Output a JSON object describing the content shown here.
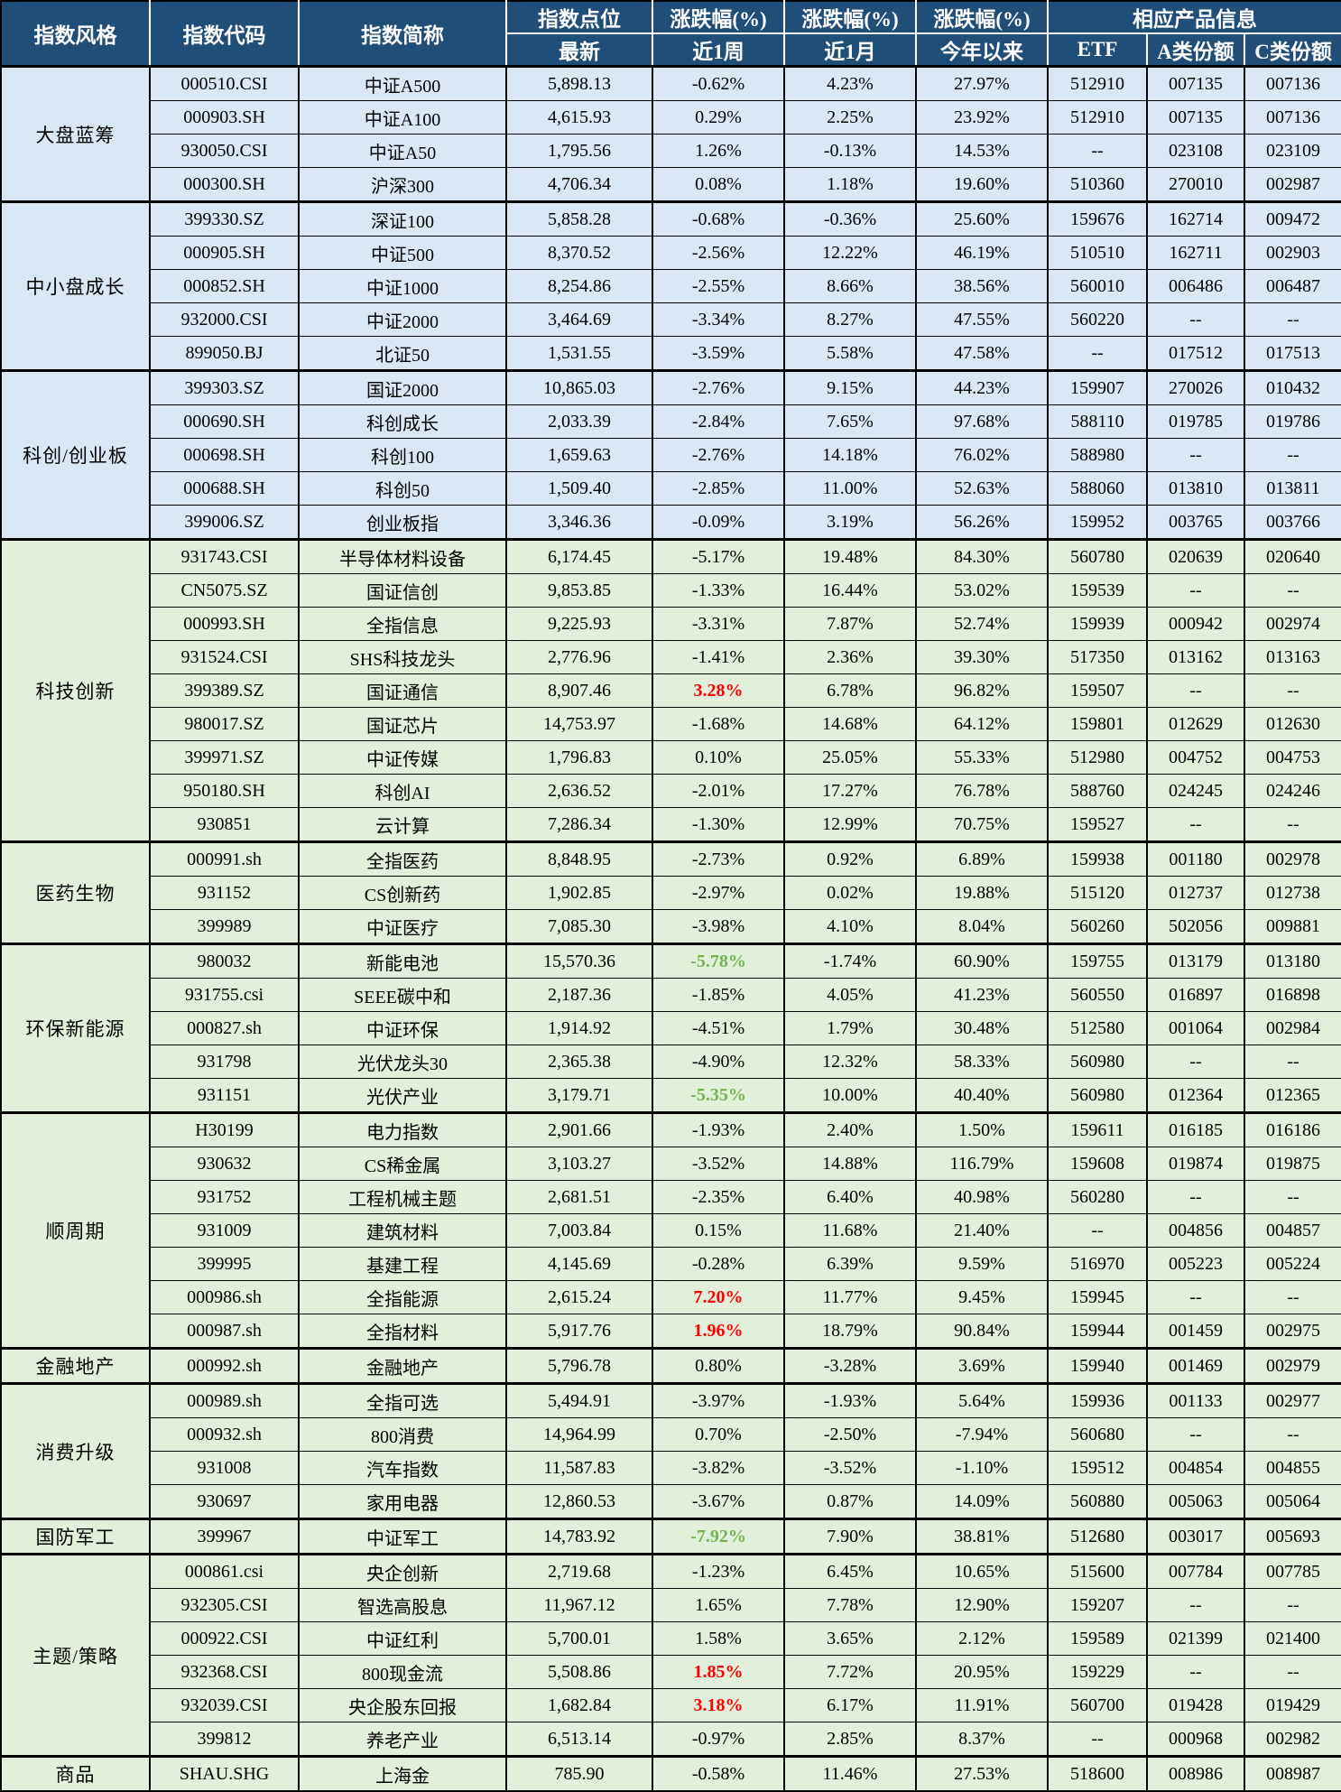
{
  "header": {
    "style": "指数风格",
    "code": "指数代码",
    "name": "指数简称",
    "points": "指数点位",
    "points_sub": "最新",
    "chg": "涨跌幅(%)",
    "chg_sub_week": "近1周",
    "chg_sub_month": "近1月",
    "chg_sub_ytd": "今年以来",
    "products": "相应产品信息",
    "etf": "ETF",
    "share_a": "A类份额",
    "share_c": "C类份额"
  },
  "colors": {
    "header_bg": "#1F4E79",
    "blue_row": "#DAE8F5",
    "green_row": "#E2EFDA",
    "up_red": "#FF0000",
    "down_green": "#76B452"
  },
  "groups": [
    {
      "style": "大盘蓝筹",
      "theme": "blue",
      "rows": [
        {
          "code": "000510.CSI",
          "name": "中证A500",
          "latest": "5,898.13",
          "week": "-0.62%",
          "month": "4.23%",
          "ytd": "27.97%",
          "etf": "512910",
          "a": "007135",
          "c": "007136"
        },
        {
          "code": "000903.SH",
          "name": "中证A100",
          "latest": "4,615.93",
          "week": "0.29%",
          "month": "2.25%",
          "ytd": "23.92%",
          "etf": "512910",
          "a": "007135",
          "c": "007136"
        },
        {
          "code": "930050.CSI",
          "name": "中证A50",
          "latest": "1,795.56",
          "week": "1.26%",
          "month": "-0.13%",
          "ytd": "14.53%",
          "etf": "--",
          "a": "023108",
          "c": "023109"
        },
        {
          "code": "000300.SH",
          "name": "沪深300",
          "latest": "4,706.34",
          "week": "0.08%",
          "month": "1.18%",
          "ytd": "19.60%",
          "etf": "510360",
          "a": "270010",
          "c": "002987"
        }
      ]
    },
    {
      "style": "中小盘成长",
      "theme": "blue",
      "rows": [
        {
          "code": "399330.SZ",
          "name": "深证100",
          "latest": "5,858.28",
          "week": "-0.68%",
          "month": "-0.36%",
          "ytd": "25.60%",
          "etf": "159676",
          "a": "162714",
          "c": "009472"
        },
        {
          "code": "000905.SH",
          "name": "中证500",
          "latest": "8,370.52",
          "week": "-2.56%",
          "month": "12.22%",
          "ytd": "46.19%",
          "etf": "510510",
          "a": "162711",
          "c": "002903"
        },
        {
          "code": "000852.SH",
          "name": "中证1000",
          "latest": "8,254.86",
          "week": "-2.55%",
          "month": "8.66%",
          "ytd": "38.56%",
          "etf": "560010",
          "a": "006486",
          "c": "006487"
        },
        {
          "code": "932000.CSI",
          "name": "中证2000",
          "latest": "3,464.69",
          "week": "-3.34%",
          "month": "8.27%",
          "ytd": "47.55%",
          "etf": "560220",
          "a": "--",
          "c": "--"
        },
        {
          "code": "899050.BJ",
          "name": "北证50",
          "latest": "1,531.55",
          "week": "-3.59%",
          "month": "5.58%",
          "ytd": "47.58%",
          "etf": "--",
          "a": "017512",
          "c": "017513"
        }
      ]
    },
    {
      "style": "科创/创业板",
      "theme": "blue",
      "rows": [
        {
          "code": "399303.SZ",
          "name": "国证2000",
          "latest": "10,865.03",
          "week": "-2.76%",
          "month": "9.15%",
          "ytd": "44.23%",
          "etf": "159907",
          "a": "270026",
          "c": "010432"
        },
        {
          "code": "000690.SH",
          "name": "科创成长",
          "latest": "2,033.39",
          "week": "-2.84%",
          "month": "7.65%",
          "ytd": "97.68%",
          "etf": "588110",
          "a": "019785",
          "c": "019786"
        },
        {
          "code": "000698.SH",
          "name": "科创100",
          "latest": "1,659.63",
          "week": "-2.76%",
          "month": "14.18%",
          "ytd": "76.02%",
          "etf": "588980",
          "a": "--",
          "c": "--"
        },
        {
          "code": "000688.SH",
          "name": "科创50",
          "latest": "1,509.40",
          "week": "-2.85%",
          "month": "11.00%",
          "ytd": "52.63%",
          "etf": "588060",
          "a": "013810",
          "c": "013811"
        },
        {
          "code": "399006.SZ",
          "name": "创业板指",
          "latest": "3,346.36",
          "week": "-0.09%",
          "month": "3.19%",
          "ytd": "56.26%",
          "etf": "159952",
          "a": "003765",
          "c": "003766"
        }
      ]
    },
    {
      "style": "科技创新",
      "theme": "green",
      "rows": [
        {
          "code": "931743.CSI",
          "name": "半导体材料设备",
          "latest": "6,174.45",
          "week": "-5.17%",
          "month": "19.48%",
          "ytd": "84.30%",
          "etf": "560780",
          "a": "020639",
          "c": "020640"
        },
        {
          "code": "CN5075.SZ",
          "name": "国证信创",
          "latest": "9,853.85",
          "week": "-1.33%",
          "month": "16.44%",
          "ytd": "53.02%",
          "etf": "159539",
          "a": "--",
          "c": "--"
        },
        {
          "code": "000993.SH",
          "name": "全指信息",
          "latest": "9,225.93",
          "week": "-3.31%",
          "month": "7.87%",
          "ytd": "52.74%",
          "etf": "159939",
          "a": "000942",
          "c": "002974"
        },
        {
          "code": "931524.CSI",
          "name": "SHS科技龙头",
          "latest": "2,776.96",
          "week": "-1.41%",
          "month": "2.36%",
          "ytd": "39.30%",
          "etf": "517350",
          "a": "013162",
          "c": "013163"
        },
        {
          "code": "399389.SZ",
          "name": "国证通信",
          "latest": "8,907.46",
          "week": "3.28%",
          "week_color": "red",
          "month": "6.78%",
          "ytd": "96.82%",
          "etf": "159507",
          "a": "--",
          "c": "--"
        },
        {
          "code": "980017.SZ",
          "name": "国证芯片",
          "latest": "14,753.97",
          "week": "-1.68%",
          "month": "14.68%",
          "ytd": "64.12%",
          "etf": "159801",
          "a": "012629",
          "c": "012630"
        },
        {
          "code": "399971.SZ",
          "name": "中证传媒",
          "latest": "1,796.83",
          "week": "0.10%",
          "month": "25.05%",
          "ytd": "55.33%",
          "etf": "512980",
          "a": "004752",
          "c": "004753"
        },
        {
          "code": "950180.SH",
          "name": "科创AI",
          "latest": "2,636.52",
          "week": "-2.01%",
          "month": "17.27%",
          "ytd": "76.78%",
          "etf": "588760",
          "a": "024245",
          "c": "024246"
        },
        {
          "code": "930851",
          "name": "云计算",
          "latest": "7,286.34",
          "week": "-1.30%",
          "month": "12.99%",
          "ytd": "70.75%",
          "etf": "159527",
          "a": "--",
          "c": "--"
        }
      ]
    },
    {
      "style": "医药生物",
      "theme": "green",
      "rows": [
        {
          "code": "000991.sh",
          "name": "全指医药",
          "latest": "8,848.95",
          "week": "-2.73%",
          "month": "0.92%",
          "ytd": "6.89%",
          "etf": "159938",
          "a": "001180",
          "c": "002978"
        },
        {
          "code": "931152",
          "name": "CS创新药",
          "latest": "1,902.85",
          "week": "-2.97%",
          "month": "0.02%",
          "ytd": "19.88%",
          "etf": "515120",
          "a": "012737",
          "c": "012738"
        },
        {
          "code": "399989",
          "name": "中证医疗",
          "latest": "7,085.30",
          "week": "-3.98%",
          "month": "4.10%",
          "ytd": "8.04%",
          "etf": "560260",
          "a": "502056",
          "c": "009881"
        }
      ]
    },
    {
      "style": "环保新能源",
      "theme": "green",
      "rows": [
        {
          "code": "980032",
          "name": "新能电池",
          "latest": "15,570.36",
          "week": "-5.78%",
          "week_color": "green",
          "month": "-1.74%",
          "ytd": "60.90%",
          "etf": "159755",
          "a": "013179",
          "c": "013180"
        },
        {
          "code": "931755.csi",
          "name": "SEEE碳中和",
          "latest": "2,187.36",
          "week": "-1.85%",
          "month": "4.05%",
          "ytd": "41.23%",
          "etf": "560550",
          "a": "016897",
          "c": "016898"
        },
        {
          "code": "000827.sh",
          "name": "中证环保",
          "latest": "1,914.92",
          "week": "-4.51%",
          "month": "1.79%",
          "ytd": "30.48%",
          "etf": "512580",
          "a": "001064",
          "c": "002984"
        },
        {
          "code": "931798",
          "name": "光伏龙头30",
          "latest": "2,365.38",
          "week": "-4.90%",
          "month": "12.32%",
          "ytd": "58.33%",
          "etf": "560980",
          "a": "--",
          "c": "--"
        },
        {
          "code": "931151",
          "name": "光伏产业",
          "latest": "3,179.71",
          "week": "-5.35%",
          "week_color": "green",
          "month": "10.00%",
          "ytd": "40.40%",
          "etf": "560980",
          "a": "012364",
          "c": "012365"
        }
      ]
    },
    {
      "style": "顺周期",
      "theme": "green",
      "rows": [
        {
          "code": "H30199",
          "name": "电力指数",
          "latest": "2,901.66",
          "week": "-1.93%",
          "month": "2.40%",
          "ytd": "1.50%",
          "etf": "159611",
          "a": "016185",
          "c": "016186"
        },
        {
          "code": "930632",
          "name": "CS稀金属",
          "latest": "3,103.27",
          "week": "-3.52%",
          "month": "14.88%",
          "ytd": "116.79%",
          "etf": "159608",
          "a": "019874",
          "c": "019875"
        },
        {
          "code": "931752",
          "name": "工程机械主题",
          "latest": "2,681.51",
          "week": "-2.35%",
          "month": "6.40%",
          "ytd": "40.98%",
          "etf": "560280",
          "a": "--",
          "c": "--"
        },
        {
          "code": "931009",
          "name": "建筑材料",
          "latest": "7,003.84",
          "week": "0.15%",
          "month": "11.68%",
          "ytd": "21.40%",
          "etf": "--",
          "a": "004856",
          "c": "004857"
        },
        {
          "code": "399995",
          "name": "基建工程",
          "latest": "4,145.69",
          "week": "-0.28%",
          "month": "6.39%",
          "ytd": "9.59%",
          "etf": "516970",
          "a": "005223",
          "c": "005224"
        },
        {
          "code": "000986.sh",
          "name": "全指能源",
          "latest": "2,615.24",
          "week": "7.20%",
          "week_color": "red",
          "month": "11.77%",
          "ytd": "9.45%",
          "etf": "159945",
          "a": "--",
          "c": "--"
        },
        {
          "code": "000987.sh",
          "name": "全指材料",
          "latest": "5,917.76",
          "week": "1.96%",
          "week_color": "red",
          "month": "18.79%",
          "ytd": "90.84%",
          "etf": "159944",
          "a": "001459",
          "c": "002975"
        }
      ]
    },
    {
      "style": "金融地产",
      "theme": "green",
      "rows": [
        {
          "code": "000992.sh",
          "name": "金融地产",
          "latest": "5,796.78",
          "week": "0.80%",
          "month": "-3.28%",
          "ytd": "3.69%",
          "etf": "159940",
          "a": "001469",
          "c": "002979"
        }
      ]
    },
    {
      "style": "消费升级",
      "theme": "green",
      "rows": [
        {
          "code": "000989.sh",
          "name": "全指可选",
          "latest": "5,494.91",
          "week": "-3.97%",
          "month": "-1.93%",
          "ytd": "5.64%",
          "etf": "159936",
          "a": "001133",
          "c": "002977"
        },
        {
          "code": "000932.sh",
          "name": "800消费",
          "latest": "14,964.99",
          "week": "0.70%",
          "month": "-2.50%",
          "ytd": "-7.94%",
          "etf": "560680",
          "a": "--",
          "c": "--"
        },
        {
          "code": "931008",
          "name": "汽车指数",
          "latest": "11,587.83",
          "week": "-3.82%",
          "month": "-3.52%",
          "ytd": "-1.10%",
          "etf": "159512",
          "a": "004854",
          "c": "004855"
        },
        {
          "code": "930697",
          "name": "家用电器",
          "latest": "12,860.53",
          "week": "-3.67%",
          "month": "0.87%",
          "ytd": "14.09%",
          "etf": "560880",
          "a": "005063",
          "c": "005064"
        }
      ]
    },
    {
      "style": "国防军工",
      "theme": "green",
      "rows": [
        {
          "code": "399967",
          "name": "中证军工",
          "latest": "14,783.92",
          "week": "-7.92%",
          "week_color": "green",
          "month": "7.90%",
          "ytd": "38.81%",
          "etf": "512680",
          "a": "003017",
          "c": "005693"
        }
      ]
    },
    {
      "style": "主题/策略",
      "theme": "green",
      "rows": [
        {
          "code": "000861.csi",
          "name": "央企创新",
          "latest": "2,719.68",
          "week": "-1.23%",
          "month": "6.45%",
          "ytd": "10.65%",
          "etf": "515600",
          "a": "007784",
          "c": "007785"
        },
        {
          "code": "932305.CSI",
          "name": "智选高股息",
          "latest": "11,967.12",
          "week": "1.65%",
          "month": "7.78%",
          "ytd": "12.90%",
          "etf": "159207",
          "a": "--",
          "c": "--"
        },
        {
          "code": "000922.CSI",
          "name": "中证红利",
          "latest": "5,700.01",
          "week": "1.58%",
          "month": "3.65%",
          "ytd": "2.12%",
          "etf": "159589",
          "a": "021399",
          "c": "021400"
        },
        {
          "code": "932368.CSI",
          "name": "800现金流",
          "latest": "5,508.86",
          "week": "1.85%",
          "week_color": "red",
          "month": "7.72%",
          "ytd": "20.95%",
          "etf": "159229",
          "a": "--",
          "c": "--"
        },
        {
          "code": "932039.CSI",
          "name": "央企股东回报",
          "latest": "1,682.84",
          "week": "3.18%",
          "week_color": "red",
          "month": "6.17%",
          "ytd": "11.91%",
          "etf": "560700",
          "a": "019428",
          "c": "019429"
        },
        {
          "code": "399812",
          "name": "养老产业",
          "latest": "6,513.14",
          "week": "-0.97%",
          "month": "2.85%",
          "ytd": "8.37%",
          "etf": "--",
          "a": "000968",
          "c": "002982"
        }
      ]
    },
    {
      "style": "商品",
      "theme": "green",
      "rows": [
        {
          "code": "SHAU.SHG",
          "name": "上海金",
          "latest": "785.90",
          "week": "-0.58%",
          "month": "11.46%",
          "ytd": "27.53%",
          "etf": "518600",
          "a": "008986",
          "c": "008987"
        }
      ]
    }
  ]
}
